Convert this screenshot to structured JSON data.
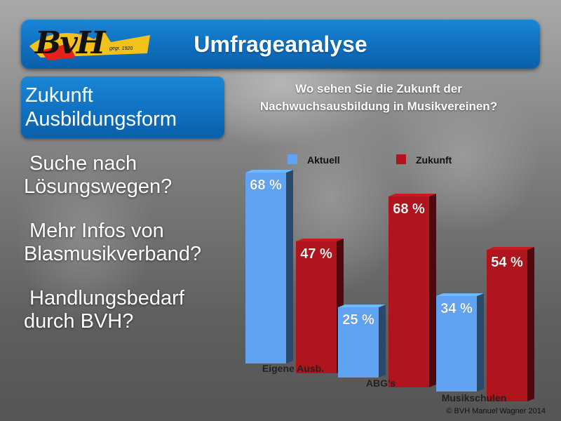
{
  "header": {
    "logo_text": "BvH",
    "logo_sub": "gegr. 1920",
    "title": "Umfrageanalyse"
  },
  "section": {
    "line1": "Zukunft",
    "line2": "Ausbildungsform"
  },
  "bullets": [
    {
      "line1": "Suche nach",
      "line2": "Lösungswegen?"
    },
    {
      "line1": "Mehr Infos von",
      "line2": "Blasmusikverband?"
    },
    {
      "line1": "Handlungsbedarf",
      "line2": "durch BVH?"
    }
  ],
  "chart_data": {
    "type": "bar",
    "title_line1": "Wo sehen Sie die Zukunft der",
    "title_line2": "Nachwuchsausbildung in Musikvereinen?",
    "categories": [
      "Eigene Ausb.",
      "ABG’s",
      "Musikschulen"
    ],
    "series": [
      {
        "name": "Aktuell",
        "values": [
          68,
          25,
          34
        ],
        "color": "#5fa3f2"
      },
      {
        "name": "Zukunft",
        "values": [
          47,
          68,
          54
        ],
        "color": "#b0141c"
      }
    ],
    "value_suffix": " %",
    "ylim": [
      0,
      80
    ],
    "legend_position": "top",
    "grid": false
  },
  "footer": {
    "copyright": "© BVH Manuel Wagner 2014"
  }
}
